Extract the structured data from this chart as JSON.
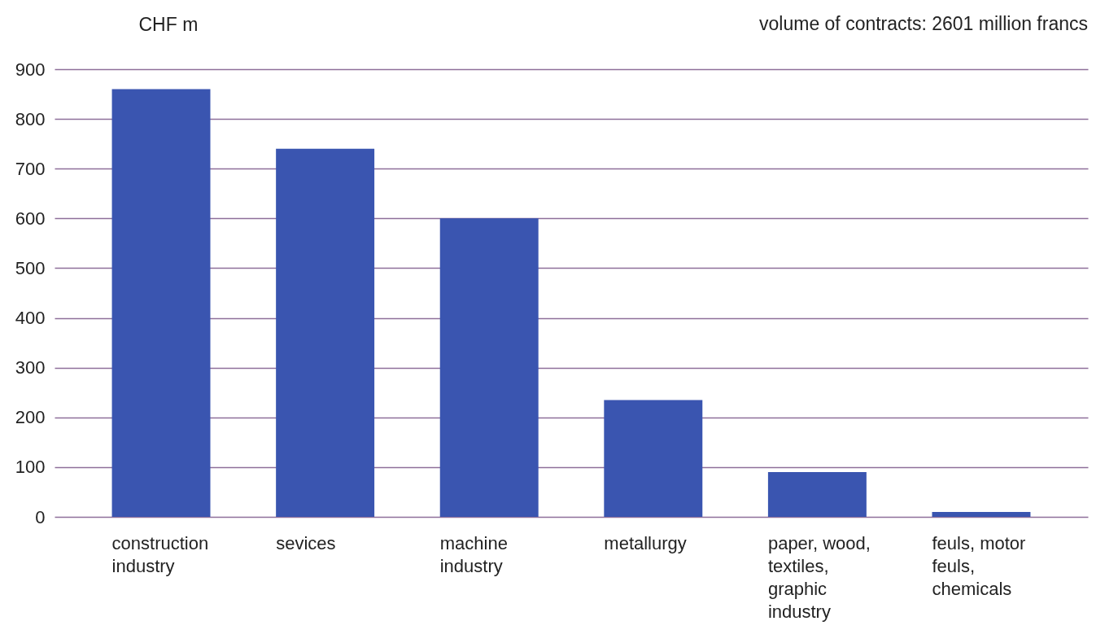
{
  "chart_data": {
    "type": "bar",
    "ylabel": "CHF m",
    "annotations": [
      "volume of contracts: 2601 million francs"
    ],
    "categories": [
      "construction industry",
      "sevices",
      "machine industry",
      "metallurgy",
      "paper, wood, textiles, graphic industry",
      "feuls, motor feuls, chemicals"
    ],
    "values": [
      860,
      740,
      600,
      235,
      90,
      10
    ],
    "color": "#3a55b0",
    "ylim": [
      0,
      900
    ],
    "yticks": [
      0,
      100,
      200,
      300,
      400,
      500,
      600,
      700,
      800,
      900
    ],
    "grid": "y"
  }
}
